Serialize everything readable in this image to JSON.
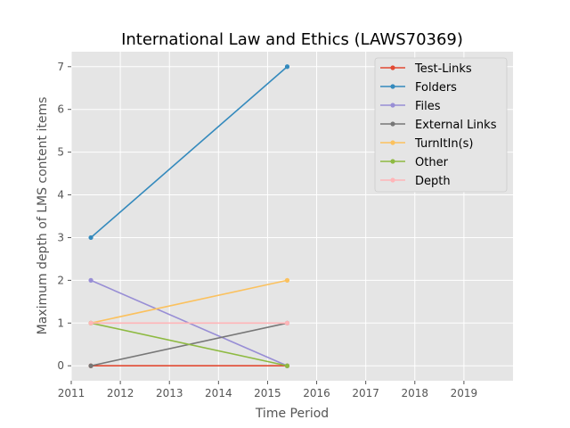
{
  "chart_data": {
    "type": "line",
    "title": "International Law and Ethics (LAWS70369)",
    "xlabel": "Time Period",
    "ylabel": "Maximum depth of LMS content items",
    "xlim": [
      2011,
      2020
    ],
    "ylim": [
      -0.35,
      7.35
    ],
    "x_ticks": [
      2011,
      2012,
      2013,
      2014,
      2015,
      2016,
      2017,
      2018,
      2019
    ],
    "y_ticks": [
      0,
      1,
      2,
      3,
      4,
      5,
      6,
      7
    ],
    "grid": true,
    "legend_position": "top-right",
    "x": [
      2011.4,
      2015.4
    ],
    "series": [
      {
        "name": "Test-Links",
        "color": "#E24A33",
        "values": [
          0,
          0
        ]
      },
      {
        "name": "Folders",
        "color": "#348ABD",
        "values": [
          3,
          7
        ]
      },
      {
        "name": "Files",
        "color": "#988ED5",
        "values": [
          2,
          0
        ]
      },
      {
        "name": "External Links",
        "color": "#777777",
        "values": [
          0,
          1
        ]
      },
      {
        "name": "TurnItIn(s)",
        "color": "#FBC15E",
        "values": [
          1,
          2
        ]
      },
      {
        "name": "Other",
        "color": "#8EBA42",
        "values": [
          1,
          0
        ]
      },
      {
        "name": "Depth",
        "color": "#FFB5B8",
        "values": [
          1,
          1
        ]
      }
    ]
  }
}
